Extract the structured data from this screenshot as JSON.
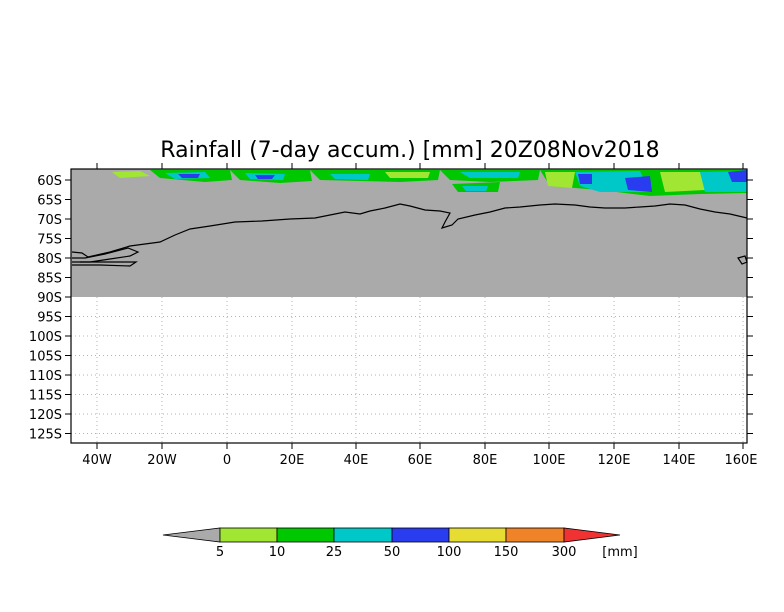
{
  "title": "Rainfall (7-day accum.) [mm] 20Z08Nov2018",
  "lat_ticks": [
    "60S",
    "65S",
    "70S",
    "75S",
    "80S",
    "85S",
    "90S",
    "95S",
    "100S",
    "105S",
    "110S",
    "115S",
    "120S",
    "125S"
  ],
  "lon_ticks": [
    "40W",
    "20W",
    "0",
    "20E",
    "40E",
    "60E",
    "80E",
    "100E",
    "120E",
    "140E",
    "160E"
  ],
  "colorbar": {
    "unit": "[mm]",
    "labels": [
      "5",
      "10",
      "25",
      "50",
      "100",
      "150",
      "300"
    ],
    "colors": [
      "#a0e632",
      "#00c800",
      "#00c8c8",
      "#2a3cf0",
      "#e6dc32",
      "#f08228",
      "#f03232"
    ],
    "under_color": "#aaaaaa"
  },
  "colors": {
    "land_gray": "#aaaaaa",
    "coast": "#000000",
    "grid": "#b4b4b4"
  }
}
